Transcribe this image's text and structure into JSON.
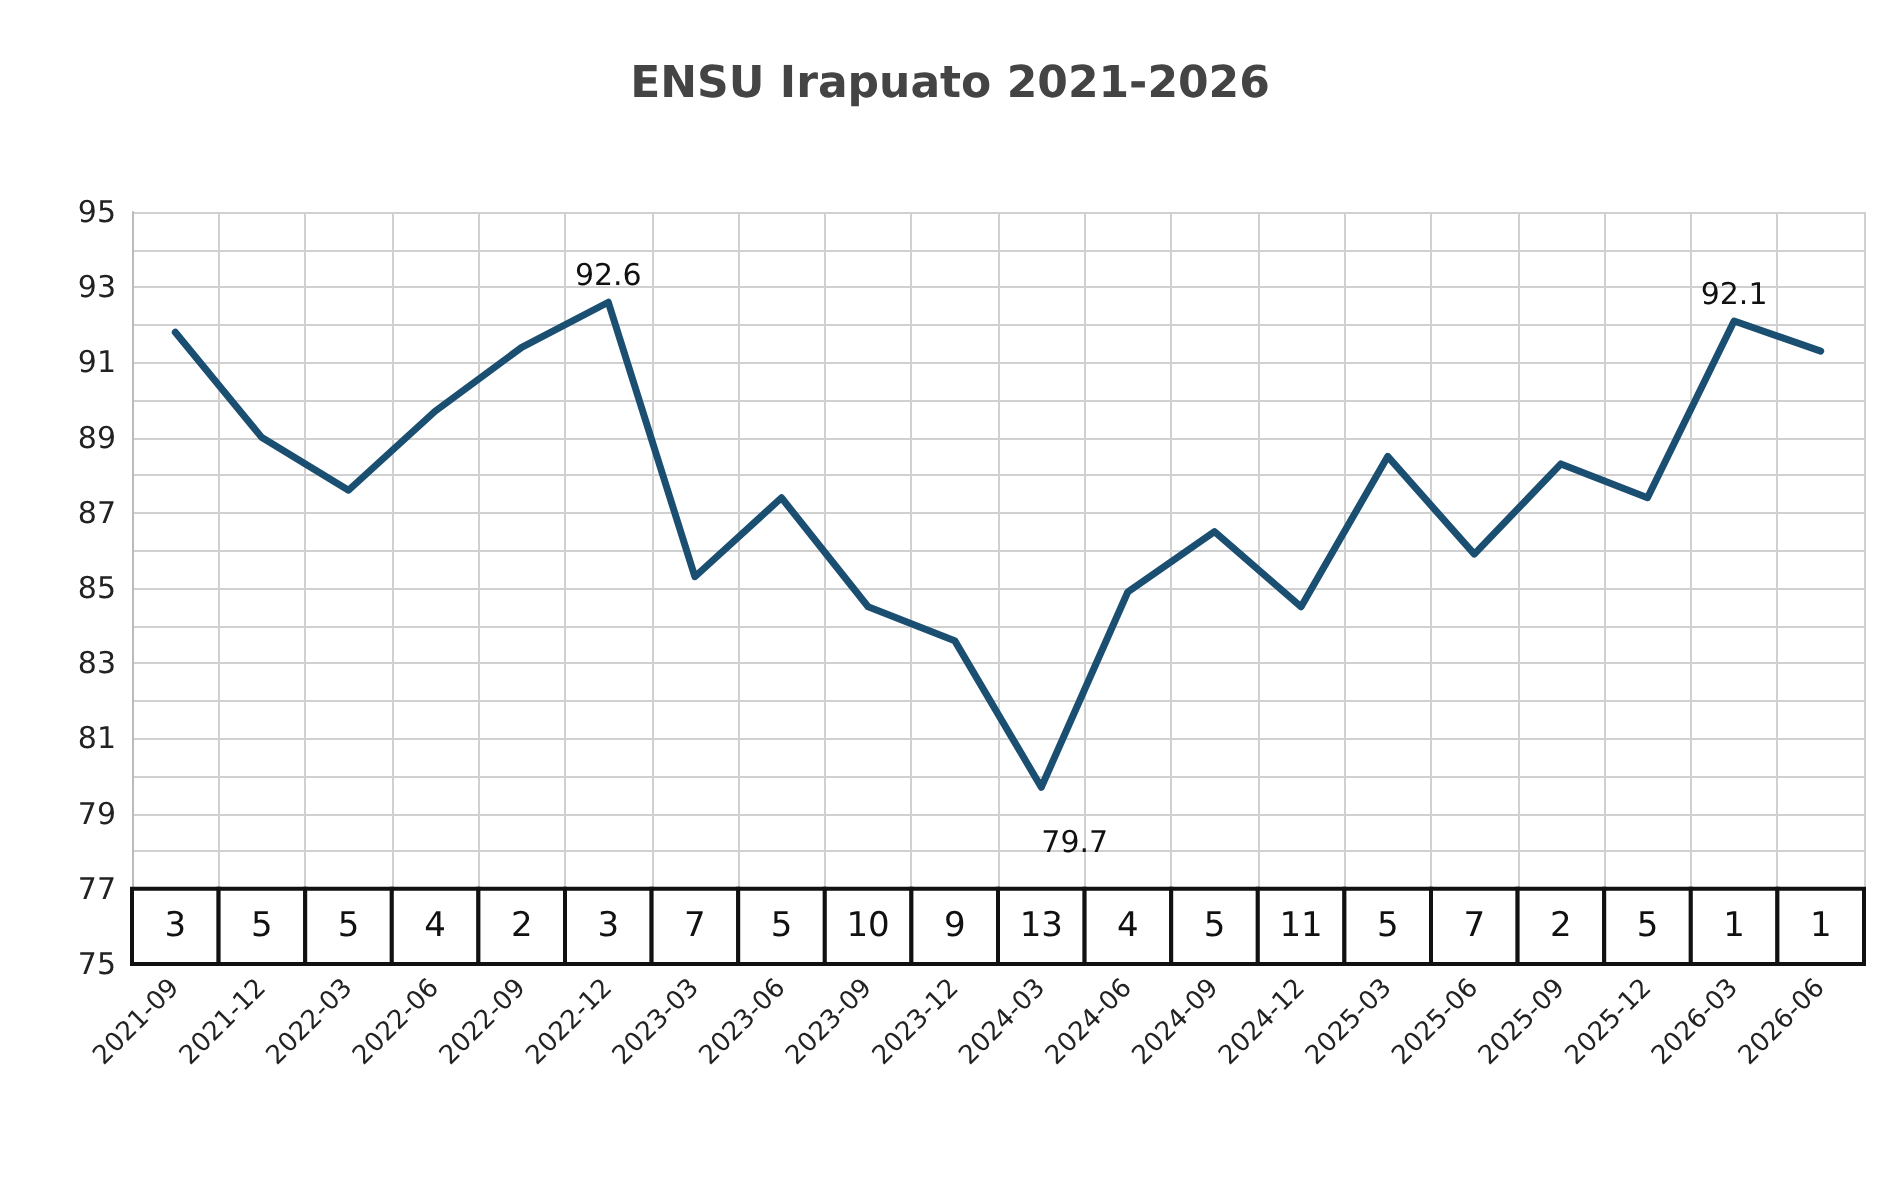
{
  "chart_data": {
    "type": "line",
    "title": "ENSU Irapuato 2021-2026",
    "categories": [
      "2021-09",
      "2021-12",
      "2022-03",
      "2022-06",
      "2022-09",
      "2022-12",
      "2023-03",
      "2023-06",
      "2023-09",
      "2023-12",
      "2024-03",
      "2024-06",
      "2024-09",
      "2024-12",
      "2025-03",
      "2025-06",
      "2025-09",
      "2025-12",
      "2026-03",
      "2026-06"
    ],
    "series": [
      {
        "color": "#1b4f72",
        "values": [
          91.8,
          89.0,
          87.6,
          89.7,
          91.4,
          92.6,
          85.3,
          87.4,
          84.5,
          83.6,
          79.7,
          84.9,
          86.5,
          84.5,
          88.5,
          85.9,
          88.3,
          87.4,
          92.1,
          91.3
        ],
        "value_labels": [
          null,
          null,
          null,
          null,
          null,
          "92.6",
          null,
          null,
          null,
          null,
          "79.7",
          null,
          null,
          null,
          null,
          null,
          null,
          null,
          "92.1",
          null
        ]
      }
    ],
    "ylim": [
      75,
      95
    ],
    "yticks": [
      75,
      77,
      {
        "value": 78,
        "label": null
      },
      79,
      {
        "value": 80,
        "label": null
      },
      81,
      {
        "value": 82,
        "label": null
      },
      83,
      {
        "value": 84,
        "label": null
      },
      85,
      {
        "value": 86,
        "label": null
      },
      87,
      {
        "value": 88,
        "label": null
      },
      89,
      {
        "value": 90,
        "label": null
      },
      91,
      {
        "value": 92,
        "label": null
      },
      93,
      {
        "value": 94,
        "label": null
      },
      95
    ],
    "grid": true,
    "marker": "none",
    "line_style": "solid",
    "annotations": [
      {
        "text": "3",
        "x": "2021-09",
        "y": 76
      },
      {
        "text": "5",
        "x": "2021-12",
        "y": 76
      },
      {
        "text": "5",
        "x": "2022-03",
        "y": 76
      },
      {
        "text": "4",
        "x": "2022-06",
        "y": 76
      },
      {
        "text": "2",
        "x": "2022-09",
        "y": 76
      },
      {
        "text": "3",
        "x": "2022-12",
        "y": 76
      },
      {
        "text": "7",
        "x": "2023-03",
        "y": 76
      },
      {
        "text": "5",
        "x": "2023-06",
        "y": 76
      },
      {
        "text": "10",
        "x": "2023-09",
        "y": 76
      },
      {
        "text": "9",
        "x": "2023-12",
        "y": 76
      },
      {
        "text": "13",
        "x": "2024-03",
        "y": 76
      },
      {
        "text": "4",
        "x": "2024-06",
        "y": 76
      },
      {
        "text": "5",
        "x": "2024-09",
        "y": 76
      },
      {
        "text": "11",
        "x": "2024-12",
        "y": 76
      },
      {
        "text": "5",
        "x": "2025-03",
        "y": 76
      },
      {
        "text": "7",
        "x": "2025-06",
        "y": 76
      },
      {
        "text": "2",
        "x": "2025-09",
        "y": 76
      },
      {
        "text": "5",
        "x": "2025-12",
        "y": 76
      },
      {
        "text": "1",
        "x": "2026-03",
        "y": 76
      },
      {
        "text": "1",
        "x": "2026-06",
        "y": 76
      }
    ]
  }
}
